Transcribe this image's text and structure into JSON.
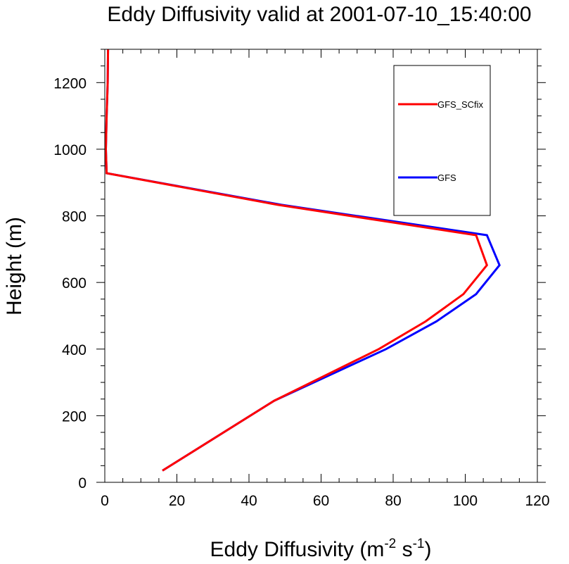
{
  "chart_data": {
    "type": "line",
    "title": "Eddy Diffusivity valid at 2001-07-10_15:40:00",
    "xlabel": {
      "base": "Eddy Diffusivity (m",
      "sup1": "-2",
      "mid": " s",
      "sup2": "-1",
      "end": ")"
    },
    "ylabel": "Height (m)",
    "xlim": [
      0,
      120
    ],
    "ylim": [
      0,
      1300
    ],
    "xticks": [
      0,
      20,
      40,
      60,
      80,
      100,
      120
    ],
    "yticks": [
      0,
      200,
      400,
      600,
      800,
      1000,
      1200
    ],
    "xtick_labels": [
      "0",
      "20",
      "40",
      "60",
      "80",
      "100",
      "120"
    ],
    "ytick_labels": [
      "0",
      "200",
      "400",
      "600",
      "800",
      "1000",
      "1200"
    ],
    "grid": false,
    "legend_position": "top-right",
    "series": [
      {
        "name": "GFS_SCfix",
        "color": "#ff0000",
        "points": [
          [
            16,
            35
          ],
          [
            47,
            245
          ],
          [
            76,
            400
          ],
          [
            89,
            483
          ],
          [
            99.5,
            565
          ],
          [
            106,
            652
          ],
          [
            103,
            742
          ],
          [
            48,
            833
          ],
          [
            0.5,
            928
          ],
          [
            0.3,
            1000
          ],
          [
            0.5,
            1100
          ],
          [
            0.8,
            1200
          ],
          [
            0.9,
            1300
          ]
        ]
      },
      {
        "name": "GFS",
        "color": "#0000ff",
        "points": [
          [
            16,
            35
          ],
          [
            47,
            245
          ],
          [
            78,
            400
          ],
          [
            92,
            483
          ],
          [
            103,
            565
          ],
          [
            109.5,
            652
          ],
          [
            106,
            742
          ],
          [
            49,
            833
          ],
          [
            0.5,
            928
          ],
          [
            0.3,
            1000
          ],
          [
            0.5,
            1100
          ],
          [
            0.8,
            1200
          ],
          [
            0.9,
            1300
          ]
        ]
      }
    ]
  }
}
